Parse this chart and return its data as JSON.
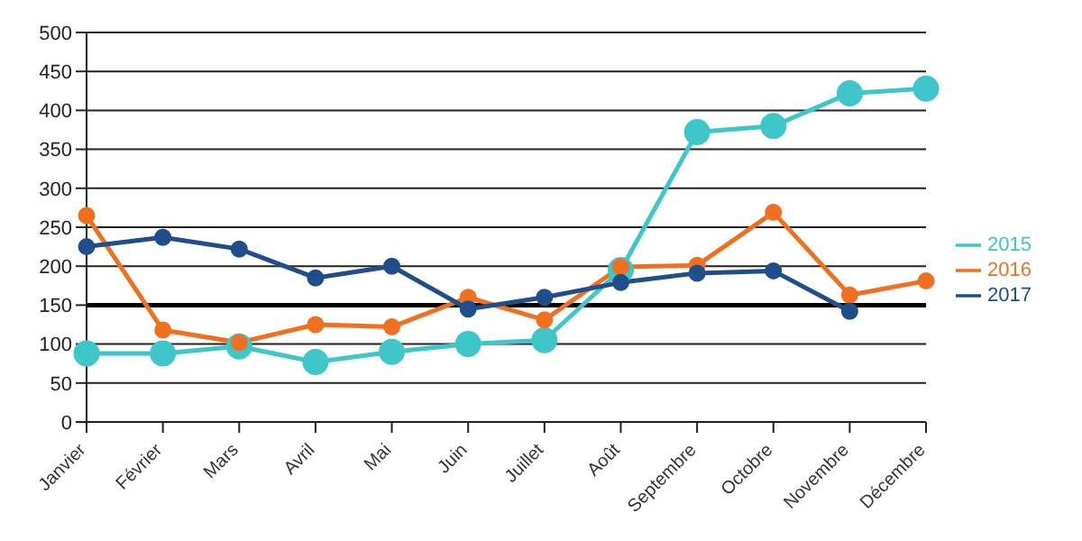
{
  "chart_data": {
    "type": "line",
    "categories": [
      "Janvier",
      "Février",
      "Mars",
      "Avril",
      "Mai",
      "Juin",
      "Juillet",
      "Août",
      "Septembre",
      "Octobre",
      "Novembre",
      "Décembre"
    ],
    "series": [
      {
        "name": "2015",
        "color": "#3ec6c8",
        "values": [
          88,
          88,
          97,
          77,
          90,
          100,
          105,
          195,
          372,
          380,
          422,
          428
        ]
      },
      {
        "name": "2016",
        "color": "#f07020",
        "values": [
          265,
          118,
          102,
          125,
          122,
          160,
          131,
          199,
          201,
          269,
          163,
          181
        ]
      },
      {
        "name": "2017",
        "color": "#1f4e8c",
        "values": [
          225,
          237,
          222,
          185,
          200,
          145,
          160,
          179,
          191,
          194,
          142,
          null
        ]
      }
    ],
    "ylim": [
      0,
      500
    ],
    "yticks": [
      0,
      50,
      100,
      150,
      200,
      250,
      300,
      350,
      400,
      450,
      500
    ],
    "grid": "y",
    "legend": "right",
    "marker": "circle",
    "line_style": "solid",
    "ref_lines": [
      {
        "axis": "y",
        "value": 150,
        "color": "#000000"
      }
    ]
  }
}
